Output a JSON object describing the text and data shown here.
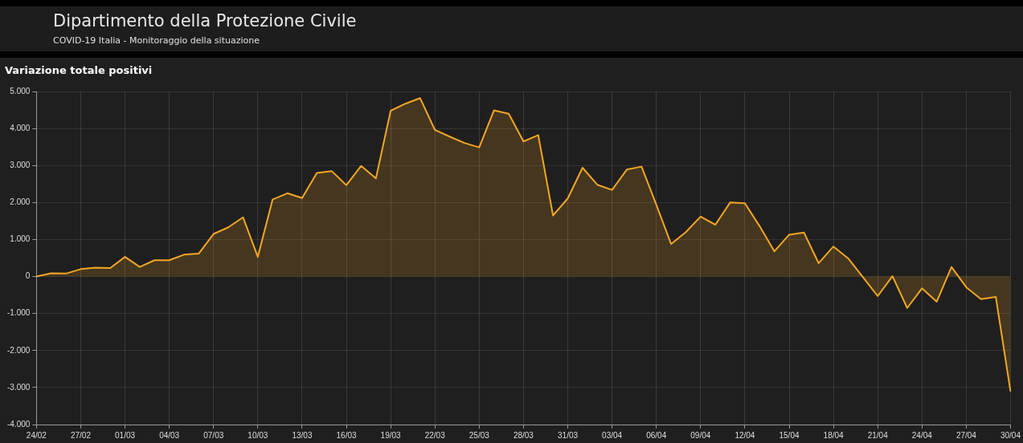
{
  "chart_data": {
    "type": "area",
    "title": "Variazione totale positivi",
    "annotations": [
      "Dipartimento della Protezione Civile",
      "COVID-19 Italia - Monitoraggio della situazione"
    ],
    "categories": [
      "24/02",
      null,
      null,
      "27/02",
      null,
      null,
      "01/03",
      null,
      null,
      "04/03",
      null,
      null,
      "07/03",
      null,
      null,
      "10/03",
      null,
      null,
      "13/03",
      null,
      null,
      "16/03",
      null,
      null,
      "19/03",
      null,
      null,
      "22/03",
      null,
      null,
      "25/03",
      null,
      null,
      "28/03",
      null,
      null,
      "31/03",
      null,
      null,
      "03/04",
      null,
      null,
      "06/04",
      null,
      null,
      "09/04",
      null,
      null,
      "12/04",
      null,
      null,
      "15/04",
      null,
      null,
      "18/04",
      null,
      null,
      "21/04",
      null,
      null,
      "24/04",
      null,
      null,
      "27/04",
      null,
      null,
      "30/04"
    ],
    "series": [
      {
        "color": "#f5a623",
        "values": [
          0,
          90,
          80,
          200,
          240,
          230,
          530,
          260,
          440,
          440,
          590,
          620,
          1150,
          1330,
          1600,
          530,
          2080,
          2250,
          2120,
          2800,
          2850,
          2470,
          2990,
          2650,
          4480,
          4670,
          4820,
          3960,
          3780,
          3610,
          3490,
          4490,
          4400,
          3650,
          3820,
          1650,
          2110,
          2940,
          2480,
          2340,
          2890,
          2970,
          1940,
          880,
          1200,
          1620,
          1400,
          2000,
          1980,
          1360,
          680,
          1130,
          1190,
          360,
          810,
          490,
          -20,
          -530,
          10,
          -850,
          -320,
          -680,
          260,
          -290,
          -610,
          -550,
          -3110
        ]
      }
    ],
    "ylim": [
      -4000,
      5000
    ],
    "yticks": [
      {
        "value": -4000,
        "label": "-4.000"
      },
      {
        "value": -3000,
        "label": "-3.000"
      },
      {
        "value": -2000,
        "label": "-2.000"
      },
      {
        "value": -1000,
        "label": "-1.000"
      },
      0,
      {
        "value": 1000,
        "label": "1.000"
      },
      {
        "value": 2000,
        "label": "2.000"
      },
      {
        "value": 3000,
        "label": "3.000"
      },
      {
        "value": 4000,
        "label": "4.000"
      },
      {
        "value": 5000,
        "label": "5.000"
      }
    ],
    "grid": true,
    "legend": false,
    "marker": "none",
    "line_style": "solid"
  }
}
